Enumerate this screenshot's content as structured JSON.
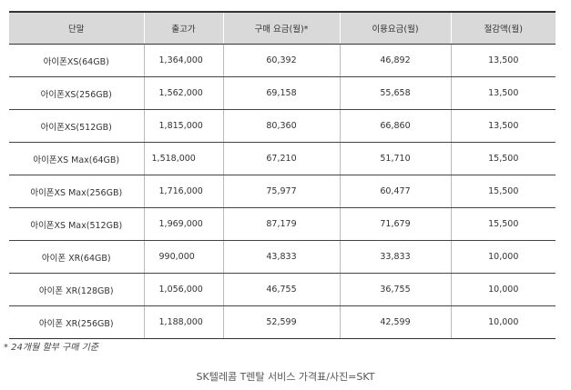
{
  "table": {
    "headers": [
      "단말",
      "출고가",
      "구매 요금(월)*",
      "이용요금(월)",
      "절감액(월)"
    ],
    "rows": [
      {
        "device": "아이폰XS(64GB)",
        "price": "1,364,000",
        "purchase_fee": "60,392",
        "usage_fee": "46,892",
        "savings": "13,500"
      },
      {
        "device": "아이폰XS(256GB)",
        "price": "1,562,000",
        "purchase_fee": "69,158",
        "usage_fee": "55,658",
        "savings": "13,500"
      },
      {
        "device": "아이폰XS(512GB)",
        "price": "1,815,000",
        "purchase_fee": "80,360",
        "usage_fee": "66,860",
        "savings": "13,500"
      },
      {
        "device": "아이폰XS Max(64GB)",
        "price": "1,518,000",
        "purchase_fee": "67,210",
        "usage_fee": "51,710",
        "savings": "15,500"
      },
      {
        "device": "아이폰XS Max(256GB)",
        "price": "1,716,000",
        "purchase_fee": "75,977",
        "usage_fee": "60,477",
        "savings": "15,500"
      },
      {
        "device": "아이폰XS Max(512GB)",
        "price": "1,969,000",
        "purchase_fee": "87,179",
        "usage_fee": "71,679",
        "savings": "15,500"
      },
      {
        "device": "아이폰 XR(64GB)",
        "price": "990,000",
        "purchase_fee": "43,833",
        "usage_fee": "33,833",
        "savings": "10,000"
      },
      {
        "device": "아이폰 XR(128GB)",
        "price": "1,056,000",
        "purchase_fee": "46,755",
        "usage_fee": "36,755",
        "savings": "10,000"
      },
      {
        "device": "아이폰 XR(256GB)",
        "price": "1,188,000",
        "purchase_fee": "52,599",
        "usage_fee": "42,599",
        "savings": "10,000"
      }
    ]
  },
  "footnote": "* 24개월 할부 구매 기준",
  "caption": "SK텔레콤 T렌탈 서비스 가격표/사진=SKT"
}
